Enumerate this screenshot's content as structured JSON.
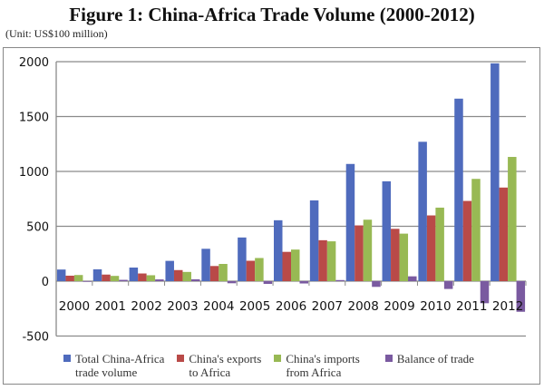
{
  "chart_data": {
    "type": "bar",
    "title": "Figure 1: China-Africa Trade Volume (2000-2012)",
    "unit": "(Unit: US$100 million)",
    "categories": [
      "2000",
      "2001",
      "2002",
      "2003",
      "2004",
      "2005",
      "2006",
      "2007",
      "2008",
      "2009",
      "2010",
      "2011",
      "2012"
    ],
    "ylim": [
      -500,
      2000
    ],
    "yticks": [
      "2000",
      "1500",
      "1000",
      "500",
      "0",
      "-500"
    ],
    "ytick_values": [
      2000,
      1500,
      1000,
      500,
      0,
      -500
    ],
    "grid": true,
    "legend_placement": "bottom",
    "series": [
      {
        "name": "Total China-Africa trade volume",
        "line1": "Total China-Africa",
        "line2": "trade volume",
        "color": "#4f6bbd",
        "values": [
          106,
          108,
          124,
          185,
          295,
          398,
          555,
          736,
          1068,
          910,
          1270,
          1663,
          1985
        ]
      },
      {
        "name": "China's exports to Africa",
        "line1": "China's exports",
        "line2": "to Africa",
        "color": "#b94a48",
        "values": [
          50,
          60,
          70,
          101,
          138,
          186,
          267,
          373,
          508,
          477,
          599,
          731,
          853
        ]
      },
      {
        "name": "China's imports from Africa",
        "line1": "China's imports",
        "line2": "from Africa",
        "color": "#98b954",
        "values": [
          56,
          48,
          54,
          84,
          157,
          211,
          288,
          363,
          560,
          433,
          670,
          932,
          1132
        ]
      },
      {
        "name": "Balance of trade",
        "line1": "Balance of trade",
        "line2": "",
        "color": "#7a5aa0",
        "values": [
          -6,
          12,
          16,
          17,
          -19,
          -25,
          -21,
          10,
          -52,
          44,
          -71,
          -201,
          -279
        ]
      }
    ]
  }
}
